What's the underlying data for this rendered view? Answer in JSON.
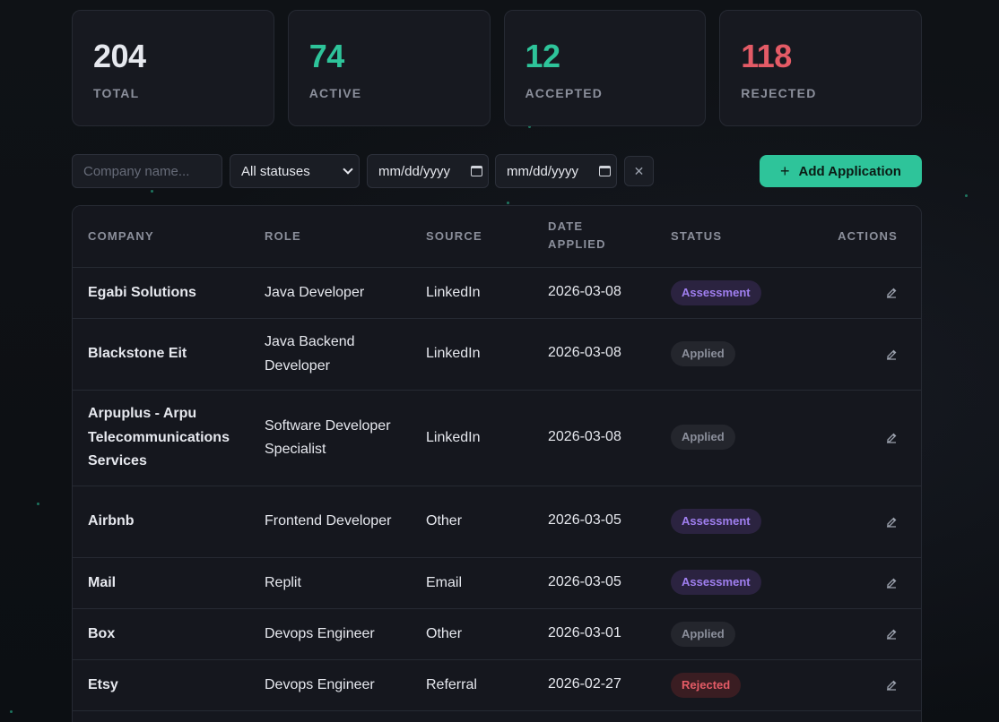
{
  "stats": {
    "total": {
      "value": "204",
      "label": "TOTAL",
      "color": "#e6e8ee"
    },
    "active": {
      "value": "74",
      "label": "ACTIVE",
      "color": "#2ec49a"
    },
    "accepted": {
      "value": "12",
      "label": "ACCEPTED",
      "color": "#2ec49a"
    },
    "rejected": {
      "value": "118",
      "label": "REJECTED",
      "color": "#e45b66"
    }
  },
  "filters": {
    "company_placeholder": "Company name...",
    "status_value": "All statuses",
    "date_from_placeholder": "mm/dd/yyyy",
    "date_to_placeholder": "mm/dd/yyyy",
    "clear_glyph": "✕",
    "add_label": "Add Application",
    "add_glyph": "+"
  },
  "table": {
    "headers": {
      "company": "COMPANY",
      "role": "ROLE",
      "source": "SOURCE",
      "date_line1": "DATE",
      "date_line2": "APPLIED",
      "status": "STATUS",
      "actions": "ACTIONS"
    },
    "rows": [
      {
        "company": "Egabi Solutions",
        "role": "Java Developer",
        "source": "LinkedIn",
        "date": "2026-03-08",
        "status": "Assessment"
      },
      {
        "company": "Blackstone Eit",
        "role": "Java Backend Developer",
        "source": "LinkedIn",
        "date": "2026-03-08",
        "status": "Applied"
      },
      {
        "company": "Arpuplus - Arpu Telecommunications Services",
        "role": "Software Developer Specialist",
        "source": "LinkedIn",
        "date": "2026-03-08",
        "status": "Applied"
      },
      {
        "company": "Airbnb",
        "role": "Frontend Developer",
        "source": "Other",
        "date": "2026-03-05",
        "status": "Assessment"
      },
      {
        "company": "Mail",
        "role": "Replit",
        "source": "Email",
        "date": "2026-03-05",
        "status": "Assessment"
      },
      {
        "company": "Box",
        "role": "Devops Engineer",
        "source": "Other",
        "date": "2026-03-01",
        "status": "Applied"
      },
      {
        "company": "Etsy",
        "role": "Devops Engineer",
        "source": "Referral",
        "date": "2026-02-27",
        "status": "Rejected"
      }
    ]
  },
  "colors": {
    "accent": "#2ec49a",
    "danger": "#e45b66",
    "assessment": "#a07ff0"
  }
}
